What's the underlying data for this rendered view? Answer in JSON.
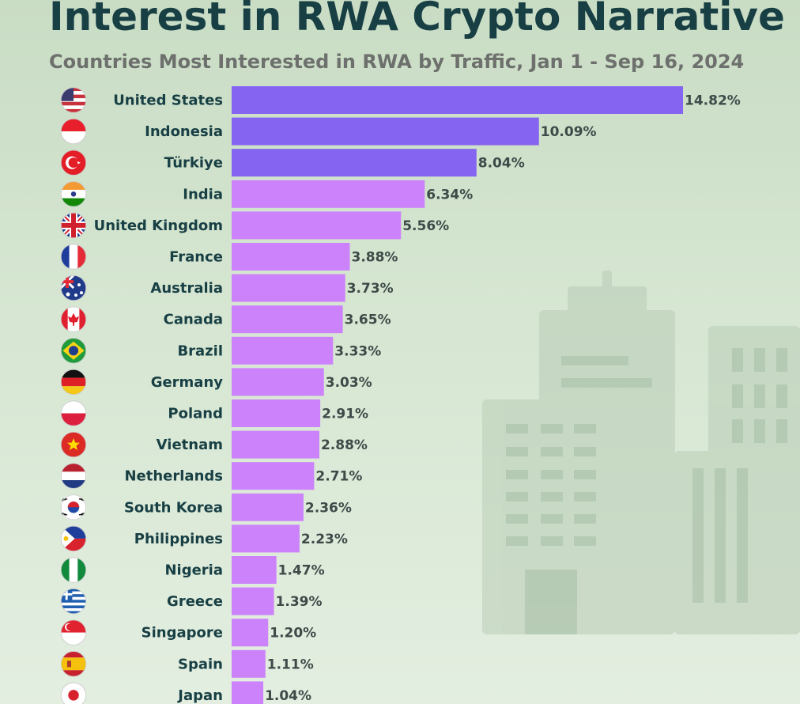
{
  "header": {
    "title": "Interest in RWA Crypto Narrative",
    "subtitle": "Countries Most Interested in RWA by Traffic, Jan 1 - Sep 16, 2024"
  },
  "colors": {
    "top": "#8464f0",
    "rest": "#cc82fb",
    "label": "#173f44",
    "value": "#3d4a48"
  },
  "chart_data": {
    "type": "bar",
    "orientation": "horizontal",
    "title": "Interest in RWA Crypto Narrative",
    "subtitle": "Countries Most Interested in RWA by Traffic, Jan 1 - Sep 16, 2024",
    "xlabel": "",
    "ylabel": "",
    "xlim": [
      0,
      15
    ],
    "categories": [
      "United States",
      "Indonesia",
      "Türkiye",
      "India",
      "United Kingdom",
      "France",
      "Australia",
      "Canada",
      "Brazil",
      "Germany",
      "Poland",
      "Vietnam",
      "Netherlands",
      "South Korea",
      "Philippines",
      "Nigeria",
      "Greece",
      "Singapore",
      "Spain",
      "Japan"
    ],
    "values": [
      14.82,
      10.09,
      8.04,
      6.34,
      5.56,
      3.88,
      3.73,
      3.65,
      3.33,
      3.03,
      2.91,
      2.88,
      2.71,
      2.36,
      2.23,
      1.47,
      1.39,
      1.2,
      1.11,
      1.04
    ],
    "value_labels": [
      "14.82%",
      "10.09%",
      "8.04%",
      "6.34%",
      "5.56%",
      "3.88%",
      "3.73%",
      "3.65%",
      "3.33%",
      "3.03%",
      "2.91%",
      "2.88%",
      "2.71%",
      "2.36%",
      "2.23%",
      "1.47%",
      "1.39%",
      "1.20%",
      "1.11%",
      "1.04%"
    ],
    "highlight_top": 3,
    "flag_icons": [
      "us-flag-icon",
      "indonesia-flag-icon",
      "turkiye-flag-icon",
      "india-flag-icon",
      "uk-flag-icon",
      "france-flag-icon",
      "australia-flag-icon",
      "canada-flag-icon",
      "brazil-flag-icon",
      "germany-flag-icon",
      "poland-flag-icon",
      "vietnam-flag-icon",
      "netherlands-flag-icon",
      "south-korea-flag-icon",
      "philippines-flag-icon",
      "nigeria-flag-icon",
      "greece-flag-icon",
      "singapore-flag-icon",
      "spain-flag-icon",
      "japan-flag-icon"
    ],
    "grid": false,
    "legend": "none"
  }
}
